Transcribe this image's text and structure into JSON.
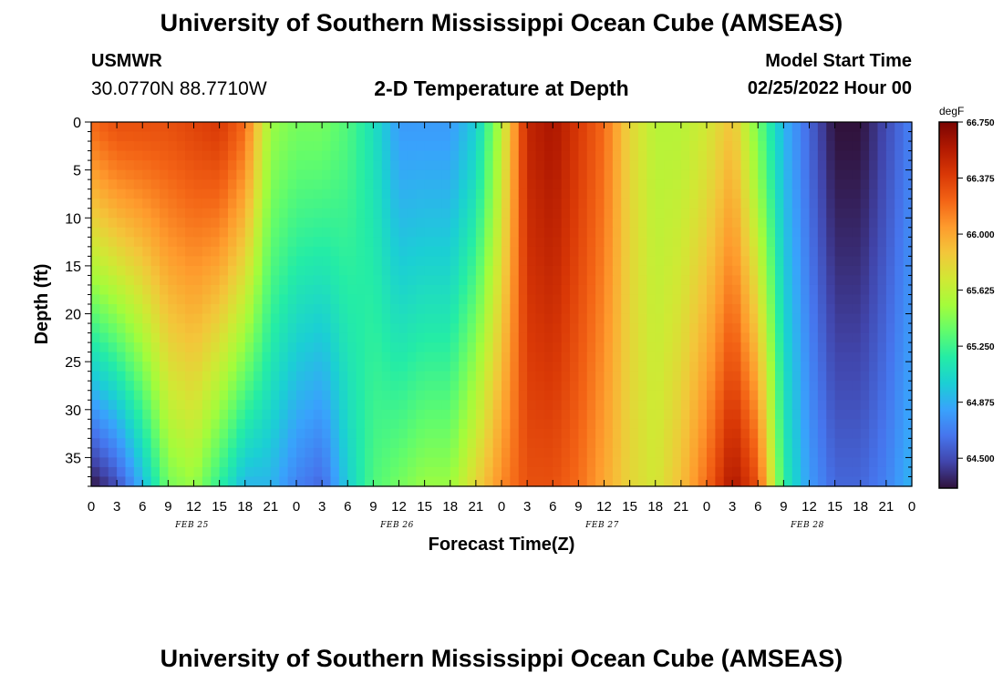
{
  "header": {
    "title": "University of Southern Mississippi Ocean Cube (AMSEAS)",
    "station": "USMWR",
    "coords": "30.0770N  88.7710W",
    "subtitle": "2-D Temperature at Depth",
    "start_label": "Model Start Time",
    "start_value": "02/25/2022 Hour 00"
  },
  "footer": {
    "title": "University of Southern Mississippi Ocean Cube (AMSEAS)"
  },
  "chart_data": {
    "type": "heatmap",
    "xlabel": "Forecast Time(Z)",
    "ylabel": "Depth (ft)",
    "x_tick_labels": [
      "0",
      "3",
      "6",
      "9",
      "12",
      "15",
      "18",
      "21",
      "0",
      "3",
      "6",
      "9",
      "12",
      "15",
      "18",
      "21",
      "0",
      "3",
      "6",
      "9",
      "12",
      "15",
      "18",
      "21",
      "0",
      "3",
      "6",
      "9",
      "12",
      "15",
      "18",
      "21",
      "0"
    ],
    "date_labels": [
      "FEB 25",
      "FEB 26",
      "FEB 27",
      "FEB 28"
    ],
    "xlim_hours": [
      0,
      96
    ],
    "y_ticks": [
      0,
      5,
      10,
      15,
      20,
      25,
      30,
      35
    ],
    "ylim": [
      0,
      38
    ],
    "colorbar": {
      "unit": "degF",
      "ticks": [
        "66.750",
        "66.375",
        "66.000",
        "65.625",
        "65.250",
        "64.875",
        "64.500"
      ],
      "range": [
        64.3,
        66.75
      ]
    },
    "colors": [
      "#30123b",
      "#4145ab",
      "#4675ed",
      "#39a2fc",
      "#1bcfd4",
      "#24eca6",
      "#61fc6c",
      "#a4fc3b",
      "#d1e834",
      "#f3c63a",
      "#fe9b2d",
      "#f36315",
      "#d93806",
      "#b11901",
      "#7a0402"
    ],
    "surface_temperature_degF": [
      66.2,
      66.3,
      66.3,
      66.3,
      66.35,
      66.4,
      66.2,
      65.5,
      65.4,
      65.4,
      65.3,
      65.1,
      64.8,
      64.8,
      64.8,
      65.0,
      65.6,
      66.5,
      66.6,
      66.4,
      66.2,
      65.8,
      65.6,
      65.6,
      65.7,
      65.9,
      65.4,
      64.9,
      64.6,
      64.3,
      64.3,
      64.5,
      64.7
    ],
    "bottom_temperature_degF": [
      64.3,
      64.5,
      64.9,
      65.4,
      65.5,
      65.2,
      64.9,
      64.9,
      64.7,
      64.6,
      65.0,
      65.3,
      65.4,
      65.5,
      65.5,
      65.8,
      66.1,
      66.3,
      66.3,
      66.2,
      66.0,
      65.8,
      65.7,
      65.9,
      66.2,
      66.6,
      66.3,
      65.2,
      64.8,
      64.6,
      64.6,
      64.7,
      64.9
    ]
  }
}
